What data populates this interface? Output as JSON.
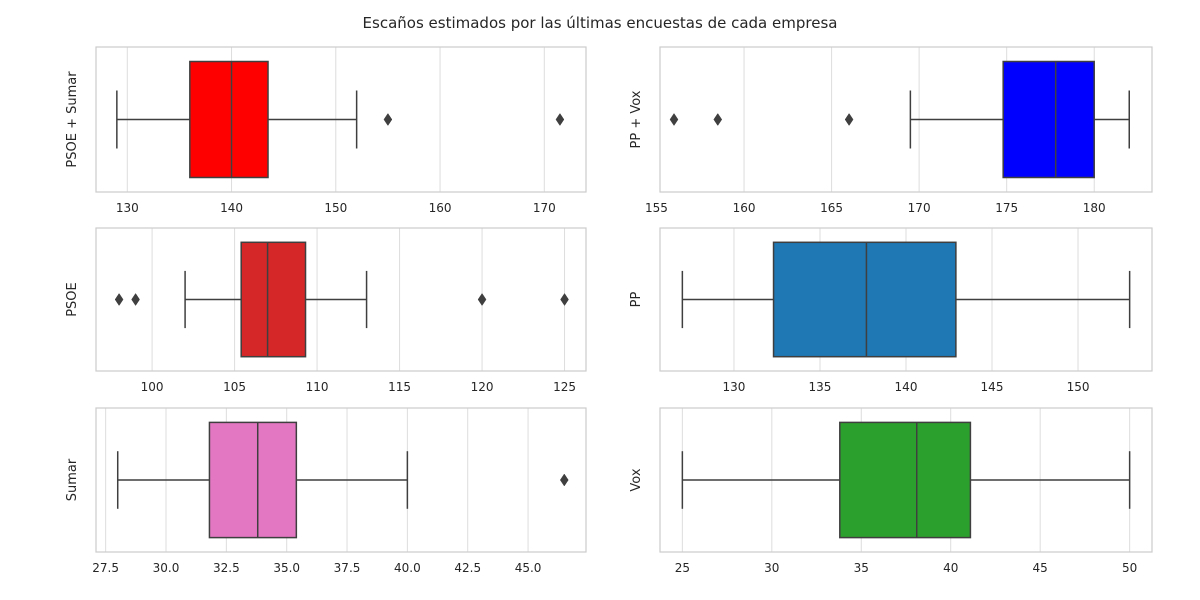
{
  "title": "Escaños estimados por las últimas encuestas de cada empresa",
  "colors": {
    "axes_edge": "#cccccc",
    "grid": "#dddddd",
    "whisker": "#3f3f3f",
    "text": "#262626"
  },
  "chart_data": [
    {
      "type": "box",
      "ylabel": "PSOE + Sumar",
      "color": "#ff0000",
      "stats": {
        "whislo": 129,
        "q1": 136,
        "med": 140,
        "q3": 143.5,
        "whishi": 152,
        "fliers": [
          155,
          171.5
        ]
      },
      "xlim": [
        127,
        174
      ],
      "xticks": [
        130,
        140,
        150,
        160,
        170
      ],
      "xtick_labels": [
        "130",
        "140",
        "150",
        "160",
        "170"
      ]
    },
    {
      "type": "box",
      "ylabel": "PP + Vox",
      "color": "#0000ff",
      "stats": {
        "whislo": 169.5,
        "q1": 174.8,
        "med": 177.8,
        "q3": 180,
        "whishi": 182,
        "fliers": [
          156,
          158.5,
          166
        ]
      },
      "xlim": [
        155.2,
        183.3
      ],
      "xticks": [
        155,
        160,
        165,
        170,
        175,
        180
      ],
      "xtick_labels": [
        "155",
        "160",
        "165",
        "170",
        "175",
        "180"
      ]
    },
    {
      "type": "box",
      "ylabel": "PSOE",
      "color": "#d62728",
      "stats": {
        "whislo": 102,
        "q1": 105.4,
        "med": 107,
        "q3": 109.3,
        "whishi": 113,
        "fliers": [
          98,
          99,
          120,
          125
        ]
      },
      "xlim": [
        96.6,
        126.3
      ],
      "xticks": [
        100,
        105,
        110,
        115,
        120,
        125
      ],
      "xtick_labels": [
        "100",
        "105",
        "110",
        "115",
        "120",
        "125"
      ]
    },
    {
      "type": "box",
      "ylabel": "PP",
      "color": "#1f77b4",
      "stats": {
        "whislo": 127,
        "q1": 132.3,
        "med": 137.7,
        "q3": 142.9,
        "whishi": 153,
        "fliers": []
      },
      "xlim": [
        125.7,
        154.3
      ],
      "xticks": [
        130,
        135,
        140,
        145,
        150
      ],
      "xtick_labels": [
        "130",
        "135",
        "140",
        "145",
        "150"
      ]
    },
    {
      "type": "box",
      "ylabel": "Sumar",
      "color": "#e377c2",
      "stats": {
        "whislo": 28,
        "q1": 31.8,
        "med": 33.8,
        "q3": 35.4,
        "whishi": 40,
        "fliers": [
          46.5
        ]
      },
      "xlim": [
        27.1,
        47.4
      ],
      "xticks": [
        27.5,
        30,
        32.5,
        35,
        37.5,
        40,
        42.5,
        45
      ],
      "xtick_labels": [
        "27.5",
        "30.0",
        "32.5",
        "35.0",
        "37.5",
        "40.0",
        "42.5",
        "45.0"
      ]
    },
    {
      "type": "box",
      "ylabel": "Vox",
      "color": "#2ca02c",
      "stats": {
        "whislo": 25,
        "q1": 33.8,
        "med": 38.1,
        "q3": 41.1,
        "whishi": 50,
        "fliers": []
      },
      "xlim": [
        23.75,
        51.25
      ],
      "xticks": [
        25,
        30,
        35,
        40,
        45,
        50
      ],
      "xtick_labels": [
        "25",
        "30",
        "35",
        "40",
        "45",
        "50"
      ]
    }
  ]
}
